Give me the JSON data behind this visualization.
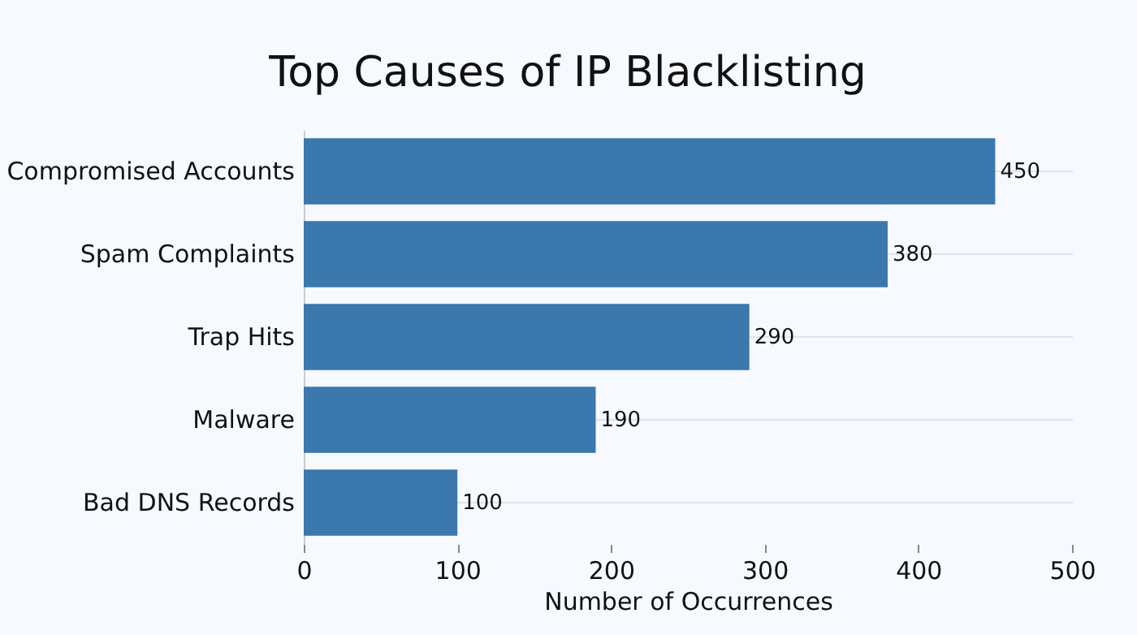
{
  "chart_data": {
    "type": "bar",
    "orientation": "horizontal",
    "title": "Top Causes of IP Blacklisting",
    "xlabel": "Number of Occurrences",
    "categories": [
      "Compromised Accounts",
      "Spam Complaints",
      "Trap Hits",
      "Malware",
      "Bad DNS Records"
    ],
    "values": [
      450,
      380,
      290,
      190,
      100
    ],
    "color": "#3a78ad",
    "xlim": [
      0,
      500
    ],
    "xticks": [
      0,
      100,
      200,
      300,
      400,
      500
    ],
    "grid": "y",
    "data_labels": true
  }
}
